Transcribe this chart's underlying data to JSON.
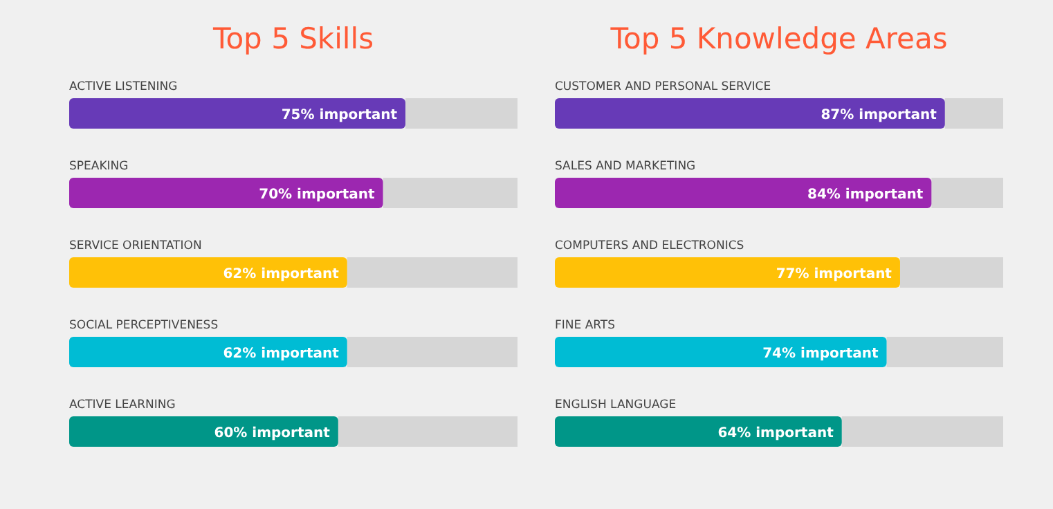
{
  "chart_data": [
    {
      "type": "bar",
      "orientation": "horizontal",
      "title": "Top 5 Skills",
      "categories": [
        "ACTIVE LISTENING",
        "SPEAKING",
        "SERVICE ORIENTATION",
        "SOCIAL PERCEPTIVENESS",
        "ACTIVE LEARNING"
      ],
      "values": [
        75,
        70,
        62,
        62,
        60
      ],
      "colors": [
        "#673ab7",
        "#9c27b0",
        "#ffc107",
        "#00bcd4",
        "#009688"
      ],
      "value_labels": [
        "75% important",
        "70% important",
        "62% important",
        "62% important",
        "60% important"
      ],
      "xlim": [
        0,
        100
      ]
    },
    {
      "type": "bar",
      "orientation": "horizontal",
      "title": "Top 5 Knowledge Areas",
      "categories": [
        "CUSTOMER AND PERSONAL SERVICE",
        "SALES AND MARKETING",
        "COMPUTERS AND ELECTRONICS",
        "FINE ARTS",
        "ENGLISH LANGUAGE"
      ],
      "values": [
        87,
        84,
        77,
        74,
        64
      ],
      "colors": [
        "#673ab7",
        "#9c27b0",
        "#ffc107",
        "#00bcd4",
        "#009688"
      ],
      "value_labels": [
        "87% important",
        "84% important",
        "77% important",
        "74% important",
        "64% important"
      ],
      "xlim": [
        0,
        100
      ]
    }
  ]
}
